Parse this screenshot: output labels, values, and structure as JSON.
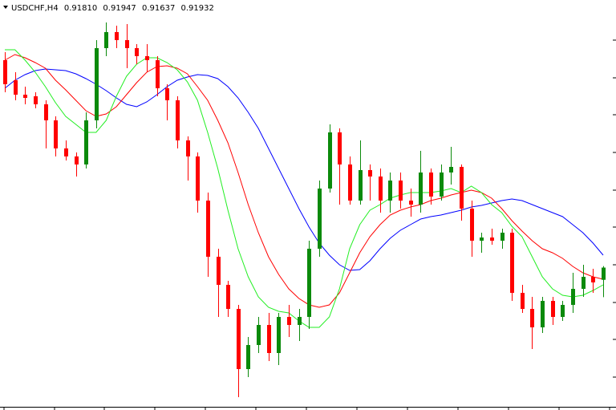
{
  "chart_data": {
    "type": "candlestick",
    "title": "USDCHF,H4",
    "header_values": [
      "0.91810",
      "0.91947",
      "0.91637",
      "0.91932"
    ],
    "ylim": [
      0.90512,
      0.946
    ],
    "up_color": "#0b8a0b",
    "down_color": "#ff0000",
    "open": [
      0.94,
      0.938,
      0.93656,
      0.9364,
      0.9356,
      0.934,
      0.9312,
      0.9304,
      0.9296,
      0.934,
      0.9412,
      0.9428,
      0.942,
      0.9412,
      0.9404,
      0.94,
      0.9372,
      0.936,
      0.932,
      0.9304,
      0.926,
      0.9204,
      0.9176,
      0.9152,
      0.9092,
      0.9116,
      0.9136,
      0.9108,
      0.9144,
      0.9136,
      0.9144,
      0.9212,
      0.9272,
      0.9328,
      0.9296,
      0.926,
      0.92904,
      0.9284,
      0.926,
      0.928,
      0.926,
      0.9256,
      0.9288,
      0.9264,
      0.9288,
      0.92936,
      0.9252,
      0.922,
      0.92232,
      0.922,
      0.9228,
      0.9168,
      0.9152,
      0.91336,
      0.916,
      0.9144,
      0.9156,
      0.9172,
      0.9184,
      0.9181
    ],
    "high": [
      0.9408,
      0.9388,
      0.93736,
      0.9368,
      0.936,
      0.9344,
      0.932,
      0.9308,
      0.9348,
      0.942,
      0.94376,
      0.94344,
      0.9436,
      0.9416,
      0.9416,
      0.9404,
      0.9376,
      0.9364,
      0.9324,
      0.9308,
      0.9268,
      0.9212,
      0.918,
      0.9156,
      0.9124,
      0.9144,
      0.9148,
      0.9148,
      0.9156,
      0.9152,
      0.922,
      0.928,
      0.9336,
      0.9332,
      0.9304,
      0.932,
      0.9296,
      0.9292,
      0.9288,
      0.9288,
      0.9272,
      0.93096,
      0.9292,
      0.9296,
      0.93136,
      0.9296,
      0.926,
      0.9228,
      0.9232,
      0.9232,
      0.9232,
      0.9176,
      0.9164,
      0.9164,
      0.9164,
      0.916,
      0.9188,
      0.9196,
      0.9192,
      0.91947
    ],
    "low": [
      0.9368,
      0.936,
      0.9356,
      0.9352,
      0.9312,
      0.9304,
      0.93,
      0.9284,
      0.9292,
      0.9332,
      0.9404,
      0.9412,
      0.9392,
      0.9396,
      0.9388,
      0.9364,
      0.934,
      0.9312,
      0.928,
      0.9248,
      0.9184,
      0.9144,
      0.9144,
      0.9064,
      0.9084,
      0.9108,
      0.91,
      0.9096,
      0.9124,
      0.912,
      0.9132,
      0.9204,
      0.9268,
      0.9256,
      0.9256,
      0.9256,
      0.926,
      0.9248,
      0.9248,
      0.9252,
      0.9244,
      0.9248,
      0.9256,
      0.926,
      0.9276,
      0.924,
      0.9204,
      0.9208,
      0.9216,
      0.9212,
      0.916,
      0.9148,
      0.9112,
      0.9128,
      0.9136,
      0.914,
      0.9148,
      0.9164,
      0.9168,
      0.91637
    ],
    "close": [
      0.9376,
      0.93656,
      0.93624,
      0.9356,
      0.934,
      0.9312,
      0.9304,
      0.9296,
      0.934,
      0.9412,
      0.9428,
      0.942,
      0.9412,
      0.9404,
      0.94,
      0.9372,
      0.936,
      0.932,
      0.9304,
      0.926,
      0.9204,
      0.9176,
      0.9152,
      0.9092,
      0.9116,
      0.9136,
      0.9108,
      0.9144,
      0.9136,
      0.9144,
      0.9212,
      0.9272,
      0.9328,
      0.9296,
      0.926,
      0.92904,
      0.9284,
      0.926,
      0.928,
      0.926,
      0.9256,
      0.9288,
      0.9264,
      0.9288,
      0.92936,
      0.9252,
      0.922,
      0.92232,
      0.922,
      0.9228,
      0.9168,
      0.9152,
      0.91336,
      0.916,
      0.9144,
      0.9156,
      0.9172,
      0.9184,
      0.91784,
      0.91932
    ],
    "lines": [
      {
        "color": "#0000ff",
        "values": [
          0.9372,
          0.938,
          0.93856,
          0.93896,
          0.93912,
          0.93904,
          0.93896,
          0.93864,
          0.93816,
          0.9376,
          0.93696,
          0.93624,
          0.9356,
          0.93536,
          0.93584,
          0.93656,
          0.93736,
          0.938,
          0.93832,
          0.93856,
          0.93848,
          0.93816,
          0.93736,
          0.93624,
          0.9348,
          0.9332,
          0.9312,
          0.9292,
          0.9272,
          0.9252,
          0.92336,
          0.92176,
          0.92056,
          0.9196,
          0.91904,
          0.91912,
          0.92,
          0.9212,
          0.92224,
          0.92304,
          0.9236,
          0.92416,
          0.9244,
          0.92456,
          0.9248,
          0.92504,
          0.92536,
          0.92552,
          0.92576,
          0.926,
          0.92616,
          0.926,
          0.9256,
          0.9252,
          0.9248,
          0.9244,
          0.9236,
          0.9228,
          0.92176,
          0.92056
        ]
      },
      {
        "color": "#ff0000",
        "values": [
          0.94,
          0.94056,
          0.94024,
          0.93976,
          0.9392,
          0.938,
          0.93704,
          0.936,
          0.93496,
          0.9344,
          0.93464,
          0.93536,
          0.93656,
          0.93776,
          0.9388,
          0.93936,
          0.93944,
          0.9392,
          0.93864,
          0.93736,
          0.936,
          0.934,
          0.93176,
          0.9288,
          0.9256,
          0.9228,
          0.9204,
          0.91864,
          0.9172,
          0.91624,
          0.9156,
          0.91536,
          0.9156,
          0.9168,
          0.9188,
          0.9208,
          0.9224,
          0.9236,
          0.92456,
          0.92504,
          0.92536,
          0.9256,
          0.926,
          0.92624,
          0.92656,
          0.9268,
          0.92704,
          0.9268,
          0.92624,
          0.9252,
          0.924,
          0.92296,
          0.922,
          0.9212,
          0.9208,
          0.92024,
          0.91944,
          0.9188,
          0.9184,
          0.91816
        ]
      },
      {
        "color": "#22ee22",
        "values": [
          0.94104,
          0.94104,
          0.94,
          0.9388,
          0.93736,
          0.93576,
          0.9344,
          0.9336,
          0.9328,
          0.9328,
          0.934,
          0.9364,
          0.9384,
          0.9396,
          0.94024,
          0.94024,
          0.93976,
          0.93904,
          0.93784,
          0.936,
          0.9328,
          0.9292,
          0.92504,
          0.9212,
          0.9184,
          0.9164,
          0.91536,
          0.91496,
          0.9148,
          0.914,
          0.91336,
          0.91336,
          0.9144,
          0.9172,
          0.9212,
          0.9236,
          0.92504,
          0.9256,
          0.92624,
          0.92656,
          0.9268,
          0.9268,
          0.9268,
          0.92696,
          0.9272,
          0.9268,
          0.92744,
          0.9268,
          0.9256,
          0.9248,
          0.92344,
          0.9224,
          0.9204,
          0.9184,
          0.9172,
          0.91656,
          0.9164,
          0.91656,
          0.91704,
          0.9176
        ]
      }
    ]
  }
}
